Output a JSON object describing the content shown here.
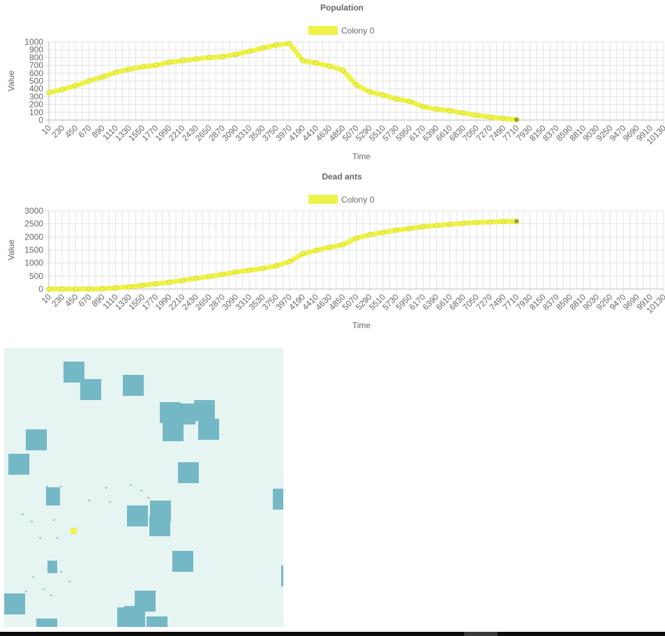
{
  "chart_data": [
    {
      "id": "population",
      "type": "line",
      "title": "Population",
      "xlabel": "Time",
      "ylabel": "Value",
      "ylim": [
        0,
        1000
      ],
      "yticks": [
        0,
        100,
        200,
        300,
        400,
        500,
        600,
        700,
        800,
        900,
        1000
      ],
      "xlim": [
        10,
        10130
      ],
      "xticks": [
        10,
        230,
        450,
        670,
        890,
        1110,
        1330,
        1550,
        1770,
        1990,
        2210,
        2430,
        2650,
        2870,
        3090,
        3310,
        3530,
        3750,
        3970,
        4190,
        4410,
        4630,
        4850,
        5070,
        5290,
        5510,
        5730,
        5950,
        6170,
        6390,
        6610,
        6830,
        7050,
        7270,
        7490,
        7710,
        7930,
        8150,
        8370,
        8590,
        8810,
        9030,
        9250,
        9470,
        9690,
        9910,
        10130
      ],
      "grid": true,
      "legend": "top-center",
      "series": [
        {
          "name": "Colony 0",
          "color": "#eef24a",
          "x": [
            10,
            230,
            450,
            670,
            890,
            1110,
            1330,
            1550,
            1770,
            1990,
            2210,
            2430,
            2650,
            2870,
            3090,
            3310,
            3530,
            3750,
            3970,
            4190,
            4410,
            4630,
            4850,
            5070,
            5290,
            5510,
            5730,
            5950,
            6170,
            6390,
            6610,
            6830,
            7050,
            7270,
            7490,
            7710
          ],
          "y": [
            350,
            390,
            440,
            500,
            550,
            610,
            650,
            680,
            700,
            740,
            760,
            780,
            800,
            810,
            840,
            880,
            920,
            960,
            980,
            760,
            730,
            690,
            640,
            450,
            360,
            320,
            270,
            240,
            170,
            140,
            120,
            90,
            60,
            40,
            20,
            5
          ]
        }
      ]
    },
    {
      "id": "dead",
      "type": "line",
      "title": "Dead ants",
      "xlabel": "Time",
      "ylabel": "Value",
      "ylim": [
        0,
        3000
      ],
      "yticks": [
        0,
        500,
        1000,
        1500,
        2000,
        2500,
        3000
      ],
      "xlim": [
        10,
        10130
      ],
      "xticks": [
        10,
        230,
        450,
        670,
        890,
        1110,
        1330,
        1550,
        1770,
        1990,
        2210,
        2430,
        2650,
        2870,
        3090,
        3310,
        3530,
        3750,
        3970,
        4190,
        4410,
        4630,
        4850,
        5070,
        5290,
        5510,
        5730,
        5950,
        6170,
        6390,
        6610,
        6830,
        7050,
        7270,
        7490,
        7710,
        7930,
        8150,
        8370,
        8590,
        8810,
        9030,
        9250,
        9470,
        9690,
        9910,
        10130
      ],
      "grid": true,
      "legend": "top-center",
      "series": [
        {
          "name": "Colony 0",
          "color": "#eef24a",
          "x": [
            10,
            230,
            450,
            670,
            890,
            1110,
            1330,
            1550,
            1770,
            1990,
            2210,
            2430,
            2650,
            2870,
            3090,
            3310,
            3530,
            3750,
            3970,
            4190,
            4410,
            4630,
            4850,
            5070,
            5290,
            5510,
            5730,
            5950,
            6170,
            6390,
            6610,
            6830,
            7050,
            7270,
            7490,
            7710
          ],
          "y": [
            0,
            0,
            0,
            5,
            10,
            40,
            80,
            140,
            200,
            260,
            330,
            410,
            480,
            560,
            650,
            720,
            790,
            890,
            1050,
            1350,
            1480,
            1600,
            1700,
            1950,
            2080,
            2170,
            2260,
            2320,
            2390,
            2440,
            2480,
            2520,
            2550,
            2570,
            2590,
            2600
          ]
        }
      ]
    }
  ],
  "simulation": {
    "background_color": "#e6f4f2",
    "obstacle_color": "#74b8c6",
    "nest_color": "#eef24a"
  }
}
